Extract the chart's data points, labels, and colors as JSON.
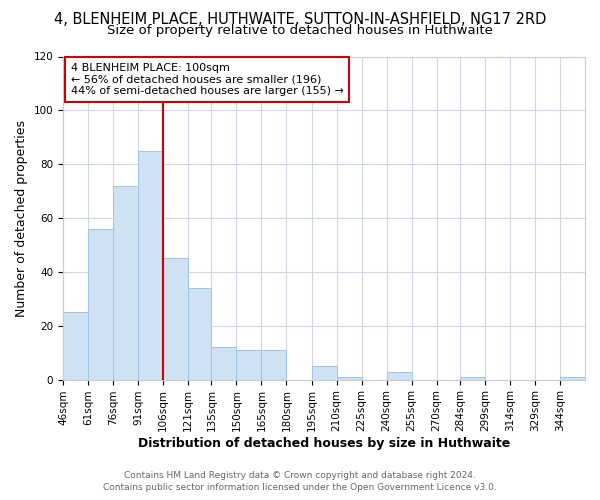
{
  "title": "4, BLENHEIM PLACE, HUTHWAITE, SUTTON-IN-ASHFIELD, NG17 2RD",
  "subtitle": "Size of property relative to detached houses in Huthwaite",
  "xlabel": "Distribution of detached houses by size in Huthwaite",
  "ylabel": "Number of detached properties",
  "bin_labels": [
    "46sqm",
    "61sqm",
    "76sqm",
    "91sqm",
    "106sqm",
    "121sqm",
    "135sqm",
    "150sqm",
    "165sqm",
    "180sqm",
    "195sqm",
    "210sqm",
    "225sqm",
    "240sqm",
    "255sqm",
    "270sqm",
    "284sqm",
    "299sqm",
    "314sqm",
    "329sqm",
    "344sqm"
  ],
  "bin_edges": [
    46,
    61,
    76,
    91,
    106,
    121,
    135,
    150,
    165,
    180,
    195,
    210,
    225,
    240,
    255,
    270,
    284,
    299,
    314,
    329,
    344,
    359
  ],
  "counts": [
    25,
    56,
    72,
    85,
    45,
    34,
    12,
    11,
    11,
    0,
    5,
    1,
    0,
    3,
    0,
    0,
    1,
    0,
    0,
    0,
    1
  ],
  "bar_color": "#cfe2f3",
  "bar_edge_color": "#9fc5e8",
  "vline_x": 106,
  "vline_color": "#cc0000",
  "annotation_line1": "4 BLENHEIM PLACE: 100sqm",
  "annotation_line2": "← 56% of detached houses are smaller (196)",
  "annotation_line3": "44% of semi-detached houses are larger (155) →",
  "annotation_box_color": "#cc0000",
  "ylim": [
    0,
    120
  ],
  "yticks": [
    0,
    20,
    40,
    60,
    80,
    100,
    120
  ],
  "footer1": "Contains HM Land Registry data © Crown copyright and database right 2024.",
  "footer2": "Contains public sector information licensed under the Open Government Licence v3.0.",
  "bg_color": "#ffffff",
  "plot_bg_color": "#ffffff",
  "grid_color": "#d0d8e8",
  "title_fontsize": 10.5,
  "subtitle_fontsize": 9.5,
  "axis_label_fontsize": 9,
  "tick_fontsize": 7.5,
  "annotation_fontsize": 8,
  "footer_fontsize": 6.5
}
